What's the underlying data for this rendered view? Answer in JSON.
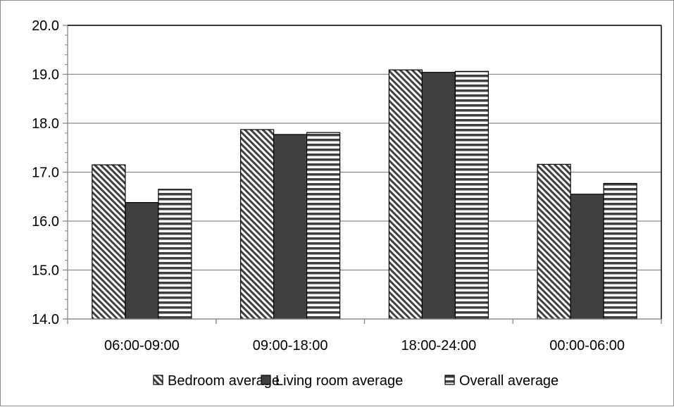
{
  "chart_data": {
    "type": "bar",
    "categories": [
      "06:00-09:00",
      "09:00-18:00",
      "18:00-24:00",
      "00:00-06:00"
    ],
    "series": [
      {
        "name": "Bedroom average",
        "values": [
          17.15,
          17.87,
          19.09,
          17.16
        ],
        "pattern": "diagonal-hatch"
      },
      {
        "name": "Living room average",
        "values": [
          16.38,
          17.77,
          19.04,
          16.55
        ],
        "pattern": "solid",
        "color": "#404040"
      },
      {
        "name": "Overall average",
        "values": [
          16.65,
          17.81,
          19.06,
          16.77
        ],
        "pattern": "horizontal-stripes"
      }
    ],
    "ylim": [
      14.0,
      20.0
    ],
    "yticks": [
      "14.0",
      "15.0",
      "16.0",
      "17.0",
      "18.0",
      "19.0",
      "20.0"
    ],
    "grid": true,
    "legend_position": "bottom",
    "title": "",
    "xlabel": "",
    "ylabel": ""
  }
}
